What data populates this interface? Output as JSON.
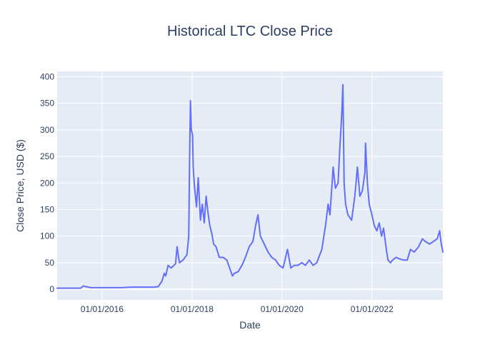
{
  "chart_data": {
    "type": "line",
    "title": "Historical LTC Close Price",
    "xlabel": "Date",
    "ylabel": "Close Price, USD ($)",
    "xlim": [
      "2015-01-01",
      "2023-07-31"
    ],
    "ylim": [
      -20,
      410
    ],
    "grid": true,
    "legend": "none",
    "x_ticks": [
      {
        "date": "2016-01-01",
        "label": "01/01/2016"
      },
      {
        "date": "2018-01-01",
        "label": "01/01/2018"
      },
      {
        "date": "2020-01-01",
        "label": "01/01/2020"
      },
      {
        "date": "2022-01-01",
        "label": "01/01/2022"
      }
    ],
    "y_ticks": [
      0,
      50,
      100,
      150,
      200,
      250,
      300,
      350,
      400
    ],
    "colors": {
      "line": "#636efa",
      "plot_bg": "#e5ecf6",
      "grid": "#ffffff",
      "text": "#2a3f5f"
    },
    "series": [
      {
        "x": [
          "2015-01-01",
          "2015-03-01",
          "2015-06-01",
          "2015-07-10",
          "2015-08-01",
          "2015-10-01",
          "2016-01-01",
          "2016-06-01",
          "2016-09-01",
          "2017-01-01",
          "2017-03-01",
          "2017-04-01",
          "2017-05-01",
          "2017-05-20",
          "2017-06-01",
          "2017-06-20",
          "2017-07-15",
          "2017-08-20",
          "2017-09-01",
          "2017-09-20",
          "2017-10-20",
          "2017-11-20",
          "2017-12-05",
          "2017-12-12",
          "2017-12-19",
          "2017-12-26",
          "2018-01-05",
          "2018-01-10",
          "2018-01-20",
          "2018-02-06",
          "2018-02-20",
          "2018-03-10",
          "2018-03-25",
          "2018-04-10",
          "2018-04-25",
          "2018-05-10",
          "2018-05-25",
          "2018-06-10",
          "2018-06-25",
          "2018-07-15",
          "2018-08-10",
          "2018-09-10",
          "2018-10-10",
          "2018-11-10",
          "2018-11-25",
          "2018-12-10",
          "2019-01-10",
          "2019-02-10",
          "2019-03-10",
          "2019-04-10",
          "2019-05-10",
          "2019-06-01",
          "2019-06-20",
          "2019-07-10",
          "2019-08-10",
          "2019-09-10",
          "2019-10-10",
          "2019-11-10",
          "2019-12-10",
          "2020-01-10",
          "2020-02-15",
          "2020-03-13",
          "2020-04-10",
          "2020-05-10",
          "2020-06-10",
          "2020-07-10",
          "2020-08-10",
          "2020-09-10",
          "2020-10-10",
          "2020-11-20",
          "2020-12-20",
          "2021-01-10",
          "2021-01-25",
          "2021-02-20",
          "2021-03-10",
          "2021-04-01",
          "2021-04-16",
          "2021-05-01",
          "2021-05-10",
          "2021-05-20",
          "2021-06-01",
          "2021-06-20",
          "2021-07-20",
          "2021-08-15",
          "2021-09-05",
          "2021-09-25",
          "2021-10-15",
          "2021-11-05",
          "2021-11-10",
          "2021-11-25",
          "2021-12-10",
          "2022-01-01",
          "2022-01-20",
          "2022-02-10",
          "2022-03-01",
          "2022-03-20",
          "2022-04-05",
          "2022-05-01",
          "2022-05-12",
          "2022-06-01",
          "2022-06-18",
          "2022-07-15",
          "2022-08-15",
          "2022-09-15",
          "2022-10-15",
          "2022-11-10",
          "2022-12-10",
          "2023-01-15",
          "2023-02-15",
          "2023-03-10",
          "2023-04-15",
          "2023-05-15",
          "2023-06-15",
          "2023-07-05",
          "2023-07-15",
          "2023-07-31"
        ],
        "y": [
          2,
          2,
          2,
          2,
          6,
          3,
          3,
          3,
          4,
          4,
          4,
          5,
          15,
          30,
          25,
          45,
          40,
          48,
          80,
          50,
          55,
          65,
          100,
          250,
          355,
          300,
          290,
          230,
          195,
          155,
          210,
          130,
          160,
          125,
          175,
          145,
          120,
          105,
          85,
          80,
          60,
          60,
          55,
          35,
          25,
          30,
          33,
          45,
          60,
          80,
          90,
          120,
          140,
          100,
          85,
          70,
          60,
          55,
          45,
          40,
          75,
          40,
          45,
          45,
          50,
          45,
          55,
          45,
          50,
          75,
          120,
          160,
          140,
          230,
          190,
          200,
          270,
          330,
          385,
          200,
          160,
          140,
          130,
          175,
          230,
          175,
          185,
          220,
          275,
          200,
          160,
          140,
          120,
          110,
          125,
          100,
          115,
          70,
          55,
          50,
          55,
          60,
          57,
          55,
          55,
          75,
          70,
          80,
          95,
          90,
          85,
          90,
          95,
          110,
          90,
          70
        ]
      }
    ]
  }
}
